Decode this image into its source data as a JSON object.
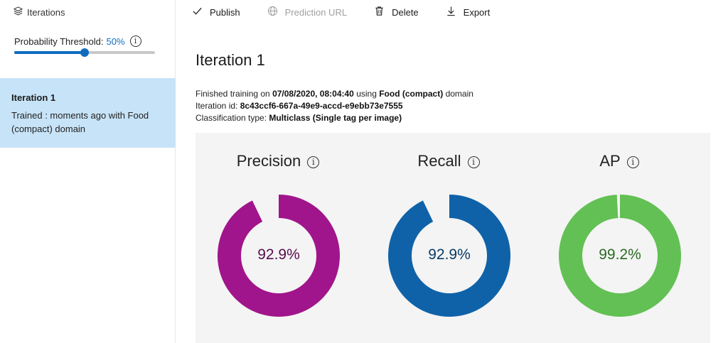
{
  "sidebar": {
    "header_label": "Iterations",
    "threshold_label": "Probability Threshold:",
    "threshold_value": "50%",
    "threshold_level": 0.5,
    "iteration": {
      "name": "Iteration 1",
      "description": "Trained : moments ago with Food (compact) domain"
    }
  },
  "toolbar": {
    "publish_label": "Publish",
    "prediction_url_label": "Prediction URL",
    "delete_label": "Delete",
    "export_label": "Export"
  },
  "main": {
    "title": "Iteration 1",
    "details": {
      "finished_prefix": "Finished training on",
      "finished_date": "07/08/2020, 08:04:40",
      "using": "using",
      "domain_name": "Food (compact)",
      "domain_suffix": "domain",
      "iteration_id_label": "Iteration id:",
      "iteration_id": "8c43ccf6-667a-49e9-accd-e9ebb73e7555",
      "classification_label": "Classification type:",
      "classification_value": "Multiclass (Single tag per image)"
    },
    "metrics": [
      {
        "label": "Precision",
        "value_text": "92.9%",
        "value": 92.9,
        "color": "#a0158b",
        "text_color": "#5a0a4e"
      },
      {
        "label": "Recall",
        "value_text": "92.9%",
        "value": 92.9,
        "color": "#0f62a8",
        "text_color": "#0a3b66"
      },
      {
        "label": "AP",
        "value_text": "99.2%",
        "value": 99.2,
        "color": "#63c054",
        "text_color": "#2b6a22"
      }
    ]
  },
  "icons": {
    "layers": "layers-icon",
    "check": "check-icon",
    "globe": "globe-icon",
    "trash": "trash-icon",
    "download": "download-icon",
    "info": "info-icon"
  },
  "colors": {
    "accent": "#0f6cbd",
    "selected_bg": "#c7e3f7",
    "panel_bg": "#f4f4f4"
  }
}
